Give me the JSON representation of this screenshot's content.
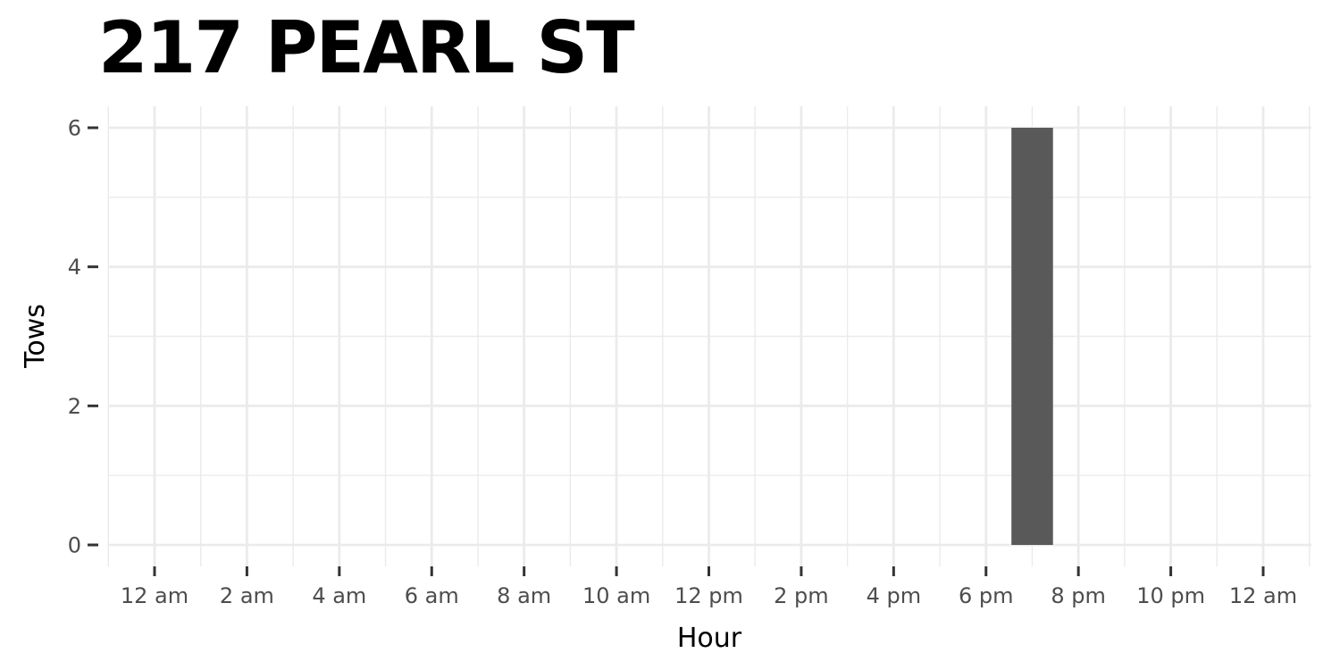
{
  "chart_data": {
    "type": "bar",
    "title": "217 PEARL ST",
    "xlabel": "Hour",
    "ylabel": "Tows",
    "x_ticks": [
      {
        "hour": 0,
        "label": "12 am"
      },
      {
        "hour": 2,
        "label": "2 am"
      },
      {
        "hour": 4,
        "label": "4 am"
      },
      {
        "hour": 6,
        "label": "6 am"
      },
      {
        "hour": 8,
        "label": "8 am"
      },
      {
        "hour": 10,
        "label": "10 am"
      },
      {
        "hour": 12,
        "label": "12 pm"
      },
      {
        "hour": 14,
        "label": "2 pm"
      },
      {
        "hour": 16,
        "label": "4 pm"
      },
      {
        "hour": 18,
        "label": "6 pm"
      },
      {
        "hour": 20,
        "label": "8 pm"
      },
      {
        "hour": 22,
        "label": "10 pm"
      },
      {
        "hour": 24,
        "label": "12 am"
      }
    ],
    "y_ticks": [
      0,
      2,
      4,
      6
    ],
    "xlim": [
      0,
      24
    ],
    "ylim": [
      0,
      6
    ],
    "bars": [
      {
        "hour": 19,
        "value": 6
      }
    ],
    "bar_color": "#595959",
    "grid": true,
    "grid_color": "#ebebeb",
    "background": "#ffffff"
  }
}
